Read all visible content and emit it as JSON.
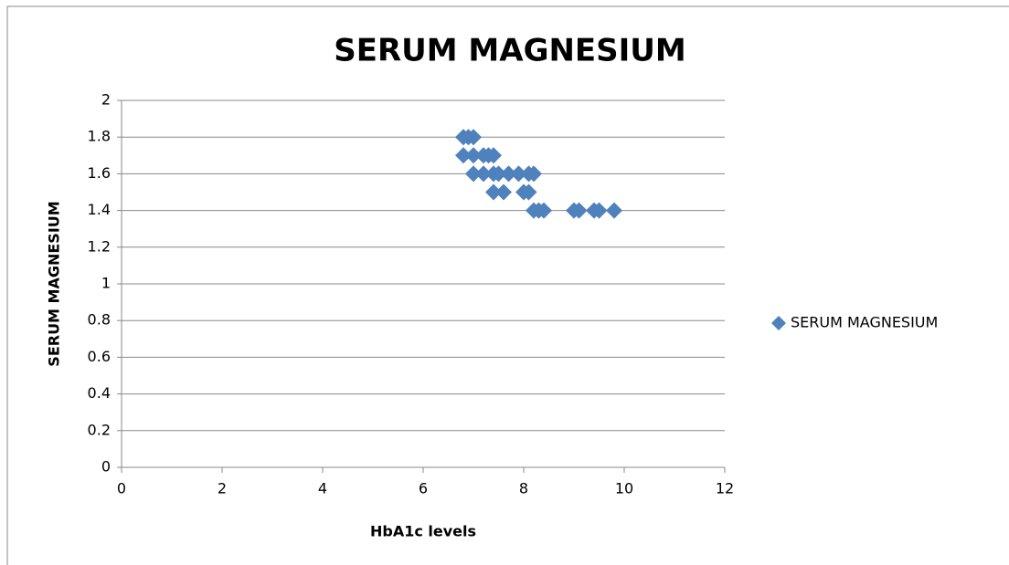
{
  "chart_data": {
    "type": "scatter",
    "title": "SERUM MAGNESIUM",
    "xlabel": "HbA1c levels",
    "ylabel": "SERUM MAGNESIUM",
    "series": [
      {
        "name": "SERUM MAGNESIUM",
        "color": "#4f81bd",
        "x": [
          6.8,
          6.9,
          7.0,
          6.8,
          7.0,
          7.2,
          7.3,
          7.4,
          7.0,
          7.2,
          7.4,
          7.5,
          7.7,
          7.9,
          8.1,
          8.2,
          7.4,
          7.6,
          8.0,
          8.1,
          8.2,
          8.3,
          8.4,
          9.0,
          9.1,
          9.4,
          9.5,
          9.8
        ],
        "values": [
          1.8,
          1.8,
          1.8,
          1.7,
          1.7,
          1.7,
          1.7,
          1.7,
          1.6,
          1.6,
          1.6,
          1.6,
          1.6,
          1.6,
          1.6,
          1.6,
          1.5,
          1.5,
          1.5,
          1.5,
          1.4,
          1.4,
          1.4,
          1.4,
          1.4,
          1.4,
          1.4,
          1.4
        ]
      }
    ],
    "xlim": [
      0,
      12
    ],
    "xticks": [
      0,
      2,
      4,
      6,
      8,
      10,
      12
    ],
    "ylim": [
      0,
      2
    ],
    "yticks": [
      0,
      0.2,
      0.4,
      0.6,
      0.8,
      1,
      1.2,
      1.4,
      1.6,
      1.8,
      2
    ],
    "grid": true,
    "legend": "right"
  }
}
